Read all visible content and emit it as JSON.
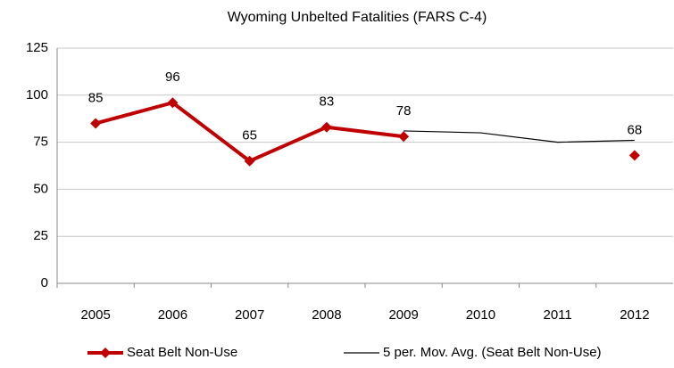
{
  "chart_data": {
    "type": "line",
    "title": "Wyoming Unbelted Fatalities (FARS C-4)",
    "categories": [
      "2005",
      "2006",
      "2007",
      "2008",
      "2009",
      "2010",
      "2011",
      "2012"
    ],
    "series": [
      {
        "name": "Seat Belt Non-Use",
        "color": "#c00000",
        "values": [
          85,
          96,
          65,
          83,
          78,
          null,
          null,
          68
        ]
      },
      {
        "name": "5 per. Mov. Avg. (Seat Belt Non-Use)",
        "color": "#000000",
        "values": [
          null,
          null,
          null,
          null,
          81,
          80,
          75,
          76
        ]
      }
    ],
    "ylim": [
      0,
      125
    ],
    "yticks": [
      0,
      25,
      50,
      75,
      100,
      125
    ],
    "grid": true,
    "legend": "bottom"
  }
}
